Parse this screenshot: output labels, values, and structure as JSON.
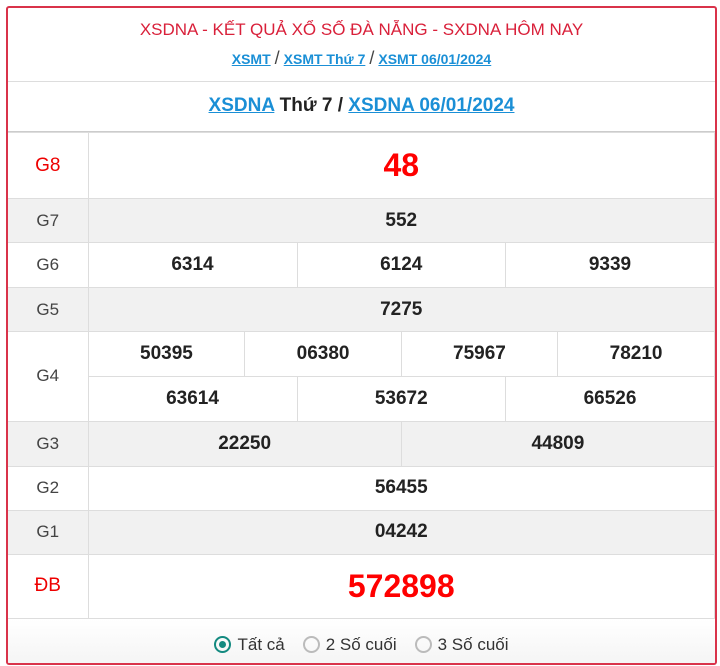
{
  "header": {
    "title": "XSDNA - KẾT QUẢ XỔ SỐ ĐÀ NẴNG - SXDNA HÔM NAY",
    "breadcrumb": [
      "XSMT",
      "XSMT Thứ 7",
      "XSMT 06/01/2024"
    ],
    "separator": "/"
  },
  "subtitle": {
    "link1": "XSDNA",
    "text": "Thứ 7 /",
    "link2": "XSDNA 06/01/2024"
  },
  "prizes": {
    "g8": {
      "label": "G8",
      "values": [
        "48"
      ]
    },
    "g7": {
      "label": "G7",
      "values": [
        "552"
      ]
    },
    "g6": {
      "label": "G6",
      "values": [
        "6314",
        "6124",
        "9339"
      ]
    },
    "g5": {
      "label": "G5",
      "values": [
        "7275"
      ]
    },
    "g4": {
      "label": "G4",
      "values": [
        "50395",
        "06380",
        "75967",
        "78210",
        "63614",
        "53672",
        "66526"
      ]
    },
    "g3": {
      "label": "G3",
      "values": [
        "22250",
        "44809"
      ]
    },
    "g2": {
      "label": "G2",
      "values": [
        "56455"
      ]
    },
    "g1": {
      "label": "G1",
      "values": [
        "04242"
      ]
    },
    "db": {
      "label": "ĐB",
      "values": [
        "572898"
      ]
    }
  },
  "filter": {
    "options": [
      "Tất cả",
      "2 Số cuối",
      "3 Số cuối"
    ],
    "selected": "Tất cả"
  },
  "colors": {
    "accent": "#d9334a",
    "link": "#1a8fd6",
    "radio": "#138a80",
    "highlight": "#ff0000"
  }
}
